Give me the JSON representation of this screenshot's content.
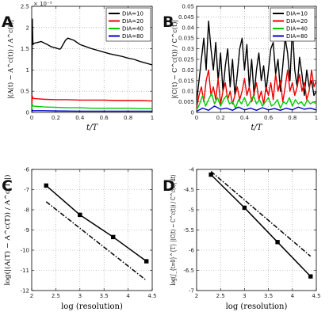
{
  "chart_data": [
    {
      "panel": "A",
      "type": "line",
      "ylabel": "|(A(t) − A^c(t)) / A^c(t)|",
      "xlabel": "t/T",
      "exponent": "× 10⁻³",
      "xlim": [
        0,
        1
      ],
      "ylim": [
        0,
        2.5
      ],
      "xticks": [
        "0",
        "0.2",
        "0.4",
        "0.6",
        "0.8",
        "1"
      ],
      "yticks": [
        "0",
        "0.5",
        "1",
        "1.5",
        "2",
        "2.5"
      ],
      "grid": true,
      "legend_position": "top-right",
      "colors": [
        "#000000",
        "#ee0000",
        "#00cc00",
        "#0000cc"
      ],
      "series": [
        {
          "name": "DIA=10",
          "x": [
            0,
            0.005,
            0.01,
            0.02,
            0.05,
            0.08,
            0.1,
            0.13,
            0.16,
            0.2,
            0.23,
            0.24,
            0.26,
            0.28,
            0.3,
            0.35,
            0.4,
            0.45,
            0.5,
            0.55,
            0.6,
            0.65,
            0.7,
            0.75,
            0.8,
            0.85,
            0.9,
            0.95,
            1.0
          ],
          "y": [
            0.3,
            2.2,
            1.6,
            1.63,
            1.65,
            1.67,
            1.64,
            1.6,
            1.55,
            1.52,
            1.49,
            1.5,
            1.6,
            1.7,
            1.75,
            1.7,
            1.6,
            1.55,
            1.5,
            1.46,
            1.42,
            1.38,
            1.35,
            1.32,
            1.28,
            1.25,
            1.2,
            1.16,
            1.12
          ]
        },
        {
          "name": "DIA=20",
          "x": [
            0,
            0.005,
            0.01,
            0.05,
            0.1,
            0.2,
            0.3,
            0.4,
            0.5,
            0.6,
            0.7,
            0.8,
            0.9,
            1.0
          ],
          "y": [
            0.1,
            0.38,
            0.33,
            0.32,
            0.31,
            0.3,
            0.3,
            0.29,
            0.29,
            0.29,
            0.28,
            0.28,
            0.28,
            0.27
          ]
        },
        {
          "name": "DIA=40",
          "x": [
            0,
            0.005,
            0.01,
            0.05,
            0.1,
            0.2,
            0.3,
            0.4,
            0.5,
            0.6,
            0.7,
            0.8,
            0.9,
            1.0
          ],
          "y": [
            0.05,
            0.2,
            0.15,
            0.14,
            0.13,
            0.12,
            0.11,
            0.11,
            0.1,
            0.1,
            0.1,
            0.1,
            0.09,
            0.09
          ]
        },
        {
          "name": "DIA=80",
          "x": [
            0,
            0.005,
            0.01,
            0.1,
            0.2,
            0.4,
            0.6,
            0.8,
            1.0
          ],
          "y": [
            0.01,
            0.06,
            0.04,
            0.04,
            0.035,
            0.03,
            0.03,
            0.03,
            0.03
          ]
        }
      ]
    },
    {
      "panel": "B",
      "type": "line",
      "ylabel": "|(C(t) − C^c(t)) / C^c(t)|",
      "xlabel": "t/T",
      "xlim": [
        0,
        1
      ],
      "ylim": [
        0,
        0.05
      ],
      "xticks": [
        "0",
        "0.2",
        "0.4",
        "0.6",
        "0.8",
        "1"
      ],
      "yticks": [
        "0",
        "0.005",
        "0.01",
        "0.015",
        "0.02",
        "0.025",
        "0.03",
        "0.035",
        "0.04",
        "0.045",
        "0.05"
      ],
      "grid": true,
      "legend_position": "top-right",
      "colors": [
        "#000000",
        "#ee0000",
        "#00cc00",
        "#0000cc"
      ],
      "series": [
        {
          "name": "DIA=10",
          "x": [
            0,
            0.02,
            0.04,
            0.06,
            0.08,
            0.1,
            0.12,
            0.14,
            0.16,
            0.18,
            0.2,
            0.22,
            0.24,
            0.26,
            0.28,
            0.3,
            0.32,
            0.34,
            0.36,
            0.38,
            0.4,
            0.42,
            0.44,
            0.46,
            0.48,
            0.5,
            0.52,
            0.54,
            0.56,
            0.58,
            0.6,
            0.62,
            0.64,
            0.66,
            0.68,
            0.7,
            0.72,
            0.74,
            0.76,
            0.78,
            0.8,
            0.82,
            0.84,
            0.86,
            0.88,
            0.9,
            0.92,
            0.94,
            0.96,
            0.98,
            1.0
          ],
          "y": [
            0.005,
            0.015,
            0.025,
            0.035,
            0.02,
            0.043,
            0.03,
            0.02,
            0.033,
            0.015,
            0.028,
            0.01,
            0.022,
            0.03,
            0.012,
            0.025,
            0.008,
            0.018,
            0.03,
            0.035,
            0.02,
            0.032,
            0.012,
            0.025,
            0.008,
            0.02,
            0.028,
            0.015,
            0.022,
            0.01,
            0.02,
            0.03,
            0.033,
            0.018,
            0.025,
            0.01,
            0.022,
            0.035,
            0.028,
            0.015,
            0.04,
            0.02,
            0.012,
            0.026,
            0.018,
            0.008,
            0.02,
            0.012,
            0.015,
            0.008,
            0.01
          ]
        },
        {
          "name": "DIA=20",
          "x": [
            0,
            0.02,
            0.04,
            0.06,
            0.08,
            0.1,
            0.12,
            0.14,
            0.16,
            0.18,
            0.2,
            0.22,
            0.24,
            0.26,
            0.28,
            0.3,
            0.32,
            0.34,
            0.36,
            0.38,
            0.4,
            0.42,
            0.44,
            0.46,
            0.48,
            0.5,
            0.52,
            0.54,
            0.56,
            0.58,
            0.6,
            0.62,
            0.64,
            0.66,
            0.68,
            0.7,
            0.72,
            0.74,
            0.76,
            0.78,
            0.8,
            0.82,
            0.84,
            0.86,
            0.88,
            0.9,
            0.92,
            0.94,
            0.96,
            0.98,
            1.0
          ],
          "y": [
            0.002,
            0.008,
            0.012,
            0.005,
            0.015,
            0.02,
            0.008,
            0.012,
            0.006,
            0.016,
            0.004,
            0.01,
            0.014,
            0.006,
            0.01,
            0.004,
            0.008,
            0.012,
            0.006,
            0.01,
            0.016,
            0.008,
            0.012,
            0.005,
            0.009,
            0.014,
            0.006,
            0.01,
            0.004,
            0.012,
            0.008,
            0.014,
            0.006,
            0.018,
            0.01,
            0.015,
            0.005,
            0.012,
            0.02,
            0.01,
            0.014,
            0.008,
            0.012,
            0.018,
            0.01,
            0.014,
            0.006,
            0.01,
            0.02,
            0.012,
            0.015
          ]
        },
        {
          "name": "DIA=40",
          "x": [
            0,
            0.025,
            0.05,
            0.075,
            0.1,
            0.125,
            0.15,
            0.175,
            0.2,
            0.225,
            0.25,
            0.275,
            0.3,
            0.325,
            0.35,
            0.375,
            0.4,
            0.425,
            0.45,
            0.475,
            0.5,
            0.525,
            0.55,
            0.575,
            0.6,
            0.625,
            0.65,
            0.675,
            0.7,
            0.725,
            0.75,
            0.775,
            0.8,
            0.825,
            0.85,
            0.875,
            0.9,
            0.925,
            0.95,
            0.975,
            1.0
          ],
          "y": [
            0.001,
            0.004,
            0.008,
            0.003,
            0.006,
            0.009,
            0.004,
            0.007,
            0.003,
            0.006,
            0.008,
            0.004,
            0.005,
            0.002,
            0.006,
            0.004,
            0.007,
            0.003,
            0.005,
            0.008,
            0.004,
            0.006,
            0.003,
            0.005,
            0.007,
            0.003,
            0.004,
            0.006,
            0.002,
            0.005,
            0.004,
            0.007,
            0.003,
            0.006,
            0.004,
            0.005,
            0.003,
            0.006,
            0.004,
            0.005,
            0.004
          ]
        },
        {
          "name": "DIA=80",
          "x": [
            0,
            0.05,
            0.1,
            0.15,
            0.2,
            0.25,
            0.3,
            0.35,
            0.4,
            0.45,
            0.5,
            0.55,
            0.6,
            0.65,
            0.7,
            0.75,
            0.8,
            0.85,
            0.9,
            0.95,
            1.0
          ],
          "y": [
            0.0005,
            0.002,
            0.001,
            0.003,
            0.0015,
            0.002,
            0.001,
            0.0025,
            0.0012,
            0.002,
            0.001,
            0.0022,
            0.0012,
            0.0018,
            0.001,
            0.002,
            0.0012,
            0.0025,
            0.0015,
            0.002,
            0.0012
          ]
        }
      ]
    },
    {
      "panel": "C",
      "type": "line",
      "ylabel": "log(|(A(T) − A^c(T)) / A^c(T)|)",
      "xlabel": "log (resolution)",
      "xlim": [
        2,
        4.5
      ],
      "ylim": [
        -12,
        -6
      ],
      "xticks": [
        "2",
        "2.5",
        "3",
        "3.5",
        "4",
        "4.5"
      ],
      "yticks": [
        "-12",
        "-11",
        "-10",
        "-9",
        "-8",
        "-7",
        "-6"
      ],
      "grid": true,
      "series": [
        {
          "style": "solid-square-markers",
          "x": [
            2.3,
            3.0,
            3.69,
            4.38
          ],
          "y": [
            -6.8,
            -8.25,
            -9.35,
            -10.55
          ]
        },
        {
          "style": "dash-dot",
          "x": [
            2.3,
            4.38
          ],
          "y": [
            -7.6,
            -11.5
          ]
        }
      ]
    },
    {
      "panel": "D",
      "type": "line",
      "ylabel": "log(∫_{t=0}^{T} |(C(t) − C^c(t)) / C^c(t)| dt)",
      "xlabel": "log (resolution)",
      "xlim": [
        2,
        4.5
      ],
      "ylim": [
        -7,
        -4
      ],
      "xticks": [
        "2",
        "2.5",
        "3",
        "3.5",
        "4",
        "4.5"
      ],
      "yticks": [
        "-7",
        "-6.5",
        "-6",
        "-5.5",
        "-5",
        "-4.5",
        "-4"
      ],
      "grid": true,
      "series": [
        {
          "style": "solid-square-markers",
          "x": [
            2.3,
            3.0,
            3.69,
            4.38
          ],
          "y": [
            -4.13,
            -4.95,
            -5.8,
            -6.65
          ]
        },
        {
          "style": "dash-dot",
          "x": [
            2.3,
            4.38
          ],
          "y": [
            -4.05,
            -6.15
          ]
        }
      ]
    }
  ]
}
